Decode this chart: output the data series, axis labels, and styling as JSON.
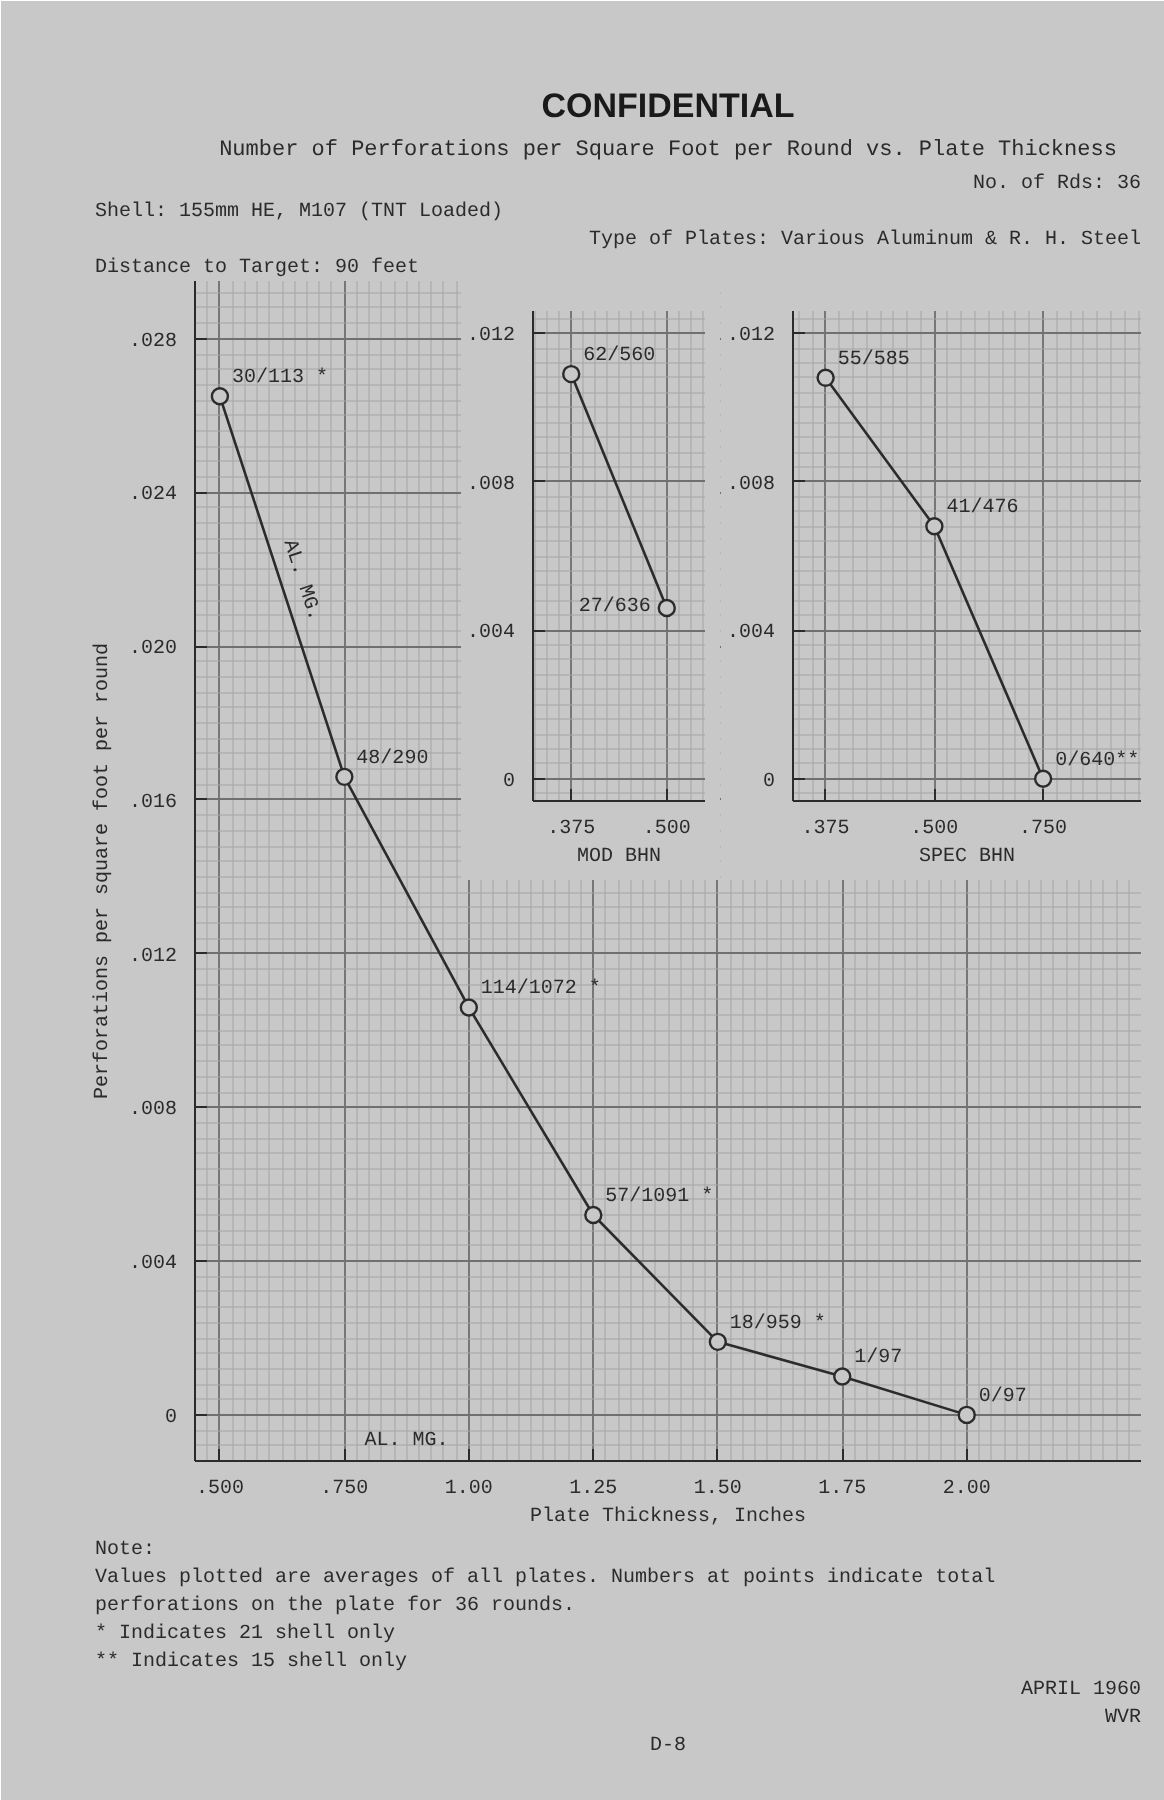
{
  "chart_data": [
    {
      "type": "line",
      "title": "Number of Perforations per Square Foot per Round vs. Plate Thickness",
      "xlabel": "Plate Thickness, Inches",
      "ylabel": "Perforations per square foot per round",
      "annotations": [
        "CONFIDENTIAL",
        "No. of Rds: 36",
        "Shell: 155mm HE, M107 (TNT Loaded)",
        "Type of Plates: Various Aluminum & R. H. Steel",
        "Distance to Target: 90 feet",
        "AL. MG.",
        "Note:",
        "Values plotted are averages of all plates. Numbers at points indicate total perforations on the plate for 36 rounds.",
        "* Indicates 21 shell only",
        "** Indicates 15 shell only",
        "APRIL 1960",
        "WVR",
        "D-8"
      ],
      "x": [
        0.5,
        0.75,
        1.0,
        1.25,
        1.5,
        1.75,
        2.0
      ],
      "series": [
        {
          "name": "AL. MG.",
          "color": "#2b2b2b",
          "values": [
            0.0265,
            0.0166,
            0.0106,
            0.0052,
            0.0019,
            0.001,
            0
          ],
          "value_labels": [
            "30/113 *",
            "48/290",
            "114/1072 *",
            "57/1091 *",
            "18/959 *",
            "1/97",
            "0/97"
          ]
        }
      ],
      "xlim": [
        0.45,
        2.35
      ],
      "xticks": [
        {
          "value": 0.5,
          "label": ".500"
        },
        {
          "value": 0.75,
          "label": ".750"
        },
        {
          "value": 1.0,
          "label": "1.00"
        },
        {
          "value": 1.25,
          "label": "1.25"
        },
        {
          "value": 1.5,
          "label": "1.50"
        },
        {
          "value": 1.75,
          "label": "1.75"
        },
        {
          "value": 2.0,
          "label": "2.00"
        }
      ],
      "ylim": [
        -0.0012,
        0.0295
      ],
      "yticks": [
        0,
        {
          "value": 0.004,
          "label": ".004"
        },
        {
          "value": 0.008,
          "label": ".008"
        },
        {
          "value": 0.012,
          "label": ".012"
        },
        {
          "value": 0.016,
          "label": ".016"
        },
        {
          "value": 0.02,
          "label": ".020"
        },
        {
          "value": 0.024,
          "label": ".024"
        },
        {
          "value": 0.028,
          "label": ".028"
        }
      ],
      "grid": true,
      "marker": "circle",
      "line_style": "solid"
    },
    {
      "type": "line",
      "xlabel": "MOD BHN",
      "categories": [
        ".375",
        ".500"
      ],
      "series": [
        {
          "color": "#2b2b2b",
          "values": [
            0.0109,
            0.0046
          ],
          "value_labels": [
            "62/560",
            "27/636"
          ]
        }
      ],
      "ylim": [
        -0.0006,
        0.0126
      ],
      "yticks": [
        0,
        {
          "value": 0.004,
          "label": ".004"
        },
        {
          "value": 0.008,
          "label": ".008"
        },
        {
          "value": 0.012,
          "label": ".012"
        }
      ],
      "grid": true,
      "marker": "circle",
      "line_style": "solid"
    },
    {
      "type": "line",
      "xlabel": "SPEC BHN",
      "categories": [
        ".375",
        ".500",
        ".750"
      ],
      "series": [
        {
          "color": "#2b2b2b",
          "values": [
            0.0108,
            0.0068,
            0
          ],
          "value_labels": [
            "55/585",
            "41/476",
            "0/640**"
          ]
        }
      ],
      "ylim": [
        -0.0006,
        0.0126
      ],
      "yticks": [
        0,
        {
          "value": 0.004,
          "label": ".004"
        },
        {
          "value": 0.008,
          "label": ".008"
        },
        {
          "value": 0.012,
          "label": ".012"
        }
      ],
      "grid": true,
      "marker": "circle",
      "line_style": "solid"
    }
  ]
}
